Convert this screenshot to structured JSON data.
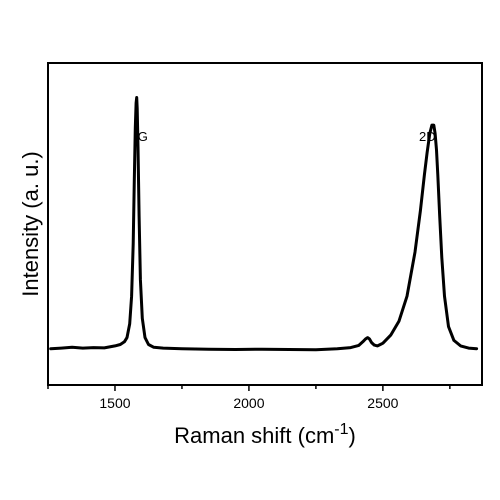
{
  "chart_data": {
    "type": "line",
    "xlabel": "Raman shift (cm",
    "xlabel_superscript": "-1",
    "xlabel_suffix": ")",
    "ylabel": "Intensity (a. u.)",
    "xlim": [
      1250,
      2870
    ],
    "ylim": [
      0,
      1.0
    ],
    "x_ticks": [
      1500,
      2000,
      2500
    ],
    "x_tick_labels": [
      "1500",
      "2000",
      "2500"
    ],
    "y_ticks_shown": false,
    "grid": false,
    "legend": "none",
    "line_color": "#000000",
    "annotations": [
      {
        "text": "G",
        "x": 1585,
        "y": 0.87
      },
      {
        "text": "2D",
        "x": 2635,
        "y": 0.87
      }
    ],
    "series": [
      {
        "x": [
          1260,
          1300,
          1340,
          1380,
          1420,
          1460,
          1500,
          1520,
          1535,
          1545,
          1555,
          1562,
          1568,
          1572,
          1576,
          1579,
          1581,
          1583,
          1586,
          1590,
          1595,
          1602,
          1612,
          1625,
          1645,
          1680,
          1750,
          1850,
          1950,
          2050,
          2150,
          2250,
          2330,
          2380,
          2410,
          2425,
          2435,
          2443,
          2450,
          2458,
          2468,
          2480,
          2500,
          2530,
          2560,
          2590,
          2620,
          2640,
          2655,
          2665,
          2675,
          2683,
          2690,
          2695,
          2700,
          2705,
          2712,
          2720,
          2730,
          2745,
          2765,
          2790,
          2820,
          2850
        ],
        "y": [
          0.07,
          0.072,
          0.075,
          0.072,
          0.074,
          0.073,
          0.08,
          0.085,
          0.095,
          0.11,
          0.16,
          0.26,
          0.45,
          0.68,
          0.87,
          0.96,
          0.98,
          0.94,
          0.8,
          0.55,
          0.32,
          0.18,
          0.11,
          0.085,
          0.075,
          0.072,
          0.07,
          0.068,
          0.067,
          0.068,
          0.067,
          0.066,
          0.07,
          0.074,
          0.082,
          0.095,
          0.105,
          0.11,
          0.105,
          0.092,
          0.083,
          0.08,
          0.09,
          0.12,
          0.17,
          0.26,
          0.42,
          0.57,
          0.7,
          0.78,
          0.85,
          0.88,
          0.88,
          0.85,
          0.79,
          0.7,
          0.55,
          0.4,
          0.26,
          0.15,
          0.1,
          0.08,
          0.072,
          0.07
        ]
      }
    ]
  }
}
